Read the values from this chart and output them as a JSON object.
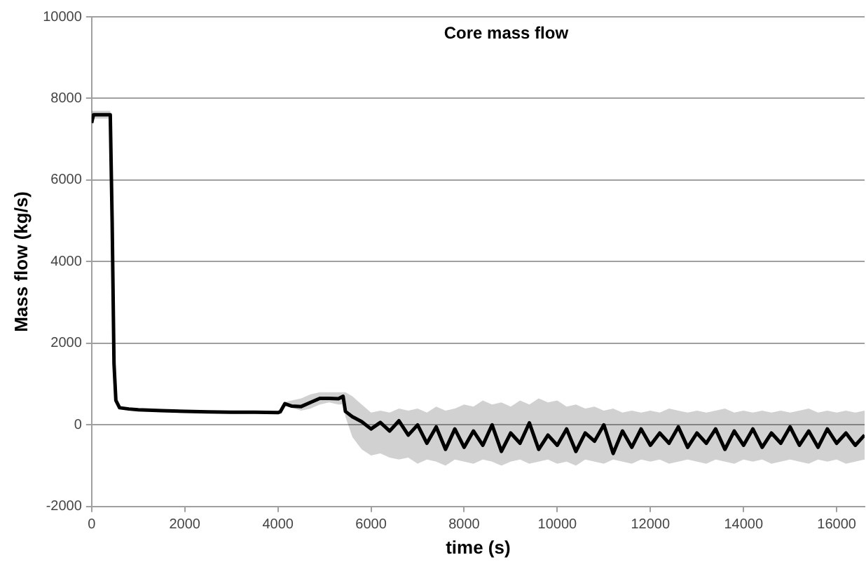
{
  "chart_data": {
    "type": "line",
    "title": "Core mass flow",
    "xlabel": "time (s)",
    "ylabel": "Mass flow (kg/s)",
    "xlim": [
      0,
      16600
    ],
    "xticks": [
      0,
      2000,
      4000,
      6000,
      8000,
      10000,
      12000,
      14000,
      16000
    ],
    "ylim": [
      -2000,
      10000
    ],
    "yticks": [
      -2000,
      0,
      2000,
      4000,
      6000,
      8000,
      10000
    ],
    "grid": "y",
    "marker": "none",
    "x": [
      0,
      40,
      80,
      400,
      440,
      480,
      520,
      600,
      800,
      1000,
      1500,
      2000,
      2500,
      3000,
      3500,
      4000,
      4050,
      4150,
      4300,
      4500,
      4700,
      4900,
      5100,
      5300,
      5400,
      5450,
      5600,
      5800,
      6000,
      6200,
      6400,
      6600,
      6800,
      7000,
      7200,
      7400,
      7600,
      7800,
      8000,
      8200,
      8400,
      8600,
      8800,
      9000,
      9200,
      9400,
      9600,
      9800,
      10000,
      10200,
      10400,
      10600,
      10800,
      11000,
      11200,
      11400,
      11600,
      11800,
      12000,
      12200,
      12400,
      12600,
      12800,
      13000,
      13200,
      13400,
      13600,
      13800,
      14000,
      14200,
      14400,
      14600,
      14800,
      15000,
      15200,
      15400,
      15600,
      15800,
      16000,
      16200,
      16400,
      16600
    ],
    "series": [
      {
        "color": "#000000",
        "values": [
          7400,
          7600,
          7600,
          7600,
          5000,
          1500,
          600,
          420,
          390,
          370,
          350,
          330,
          320,
          310,
          310,
          300,
          320,
          520,
          460,
          450,
          550,
          650,
          650,
          640,
          700,
          330,
          200,
          80,
          -100,
          60,
          -150,
          100,
          -250,
          0,
          -450,
          -50,
          -600,
          -100,
          -550,
          -150,
          -500,
          0,
          -650,
          -200,
          -450,
          50,
          -600,
          -250,
          -500,
          -100,
          -650,
          -200,
          -400,
          0,
          -700,
          -150,
          -550,
          -100,
          -500,
          -200,
          -450,
          -50,
          -550,
          -200,
          -450,
          -100,
          -600,
          -150,
          -500,
          -100,
          -550,
          -200,
          -450,
          -50,
          -500,
          -150,
          -550,
          -100,
          -450,
          -200,
          -500,
          -250
        ],
        "upper": [
          7700,
          7700,
          7700,
          7700,
          5000,
          1500,
          600,
          420,
          390,
          370,
          350,
          330,
          320,
          310,
          310,
          300,
          320,
          560,
          600,
          650,
          750,
          800,
          800,
          800,
          800,
          800,
          700,
          500,
          300,
          350,
          300,
          400,
          350,
          400,
          300,
          450,
          350,
          400,
          500,
          450,
          600,
          500,
          550,
          450,
          600,
          500,
          650,
          550,
          600,
          450,
          500,
          400,
          450,
          350,
          400,
          300,
          350,
          300,
          350,
          300,
          400,
          350,
          300,
          350,
          300,
          350,
          400,
          300,
          350,
          300,
          350,
          300,
          350,
          300,
          350,
          400,
          300,
          350,
          300,
          350,
          300,
          350
        ],
        "lower": [
          7400,
          7500,
          7500,
          7500,
          5000,
          1500,
          600,
          420,
          390,
          370,
          350,
          330,
          320,
          310,
          310,
          300,
          320,
          480,
          420,
          350,
          400,
          500,
          550,
          500,
          500,
          200,
          -300,
          -600,
          -750,
          -700,
          -800,
          -850,
          -800,
          -950,
          -850,
          -900,
          -1000,
          -850,
          -900,
          -950,
          -850,
          -900,
          -1000,
          -900,
          -850,
          -950,
          -900,
          -850,
          -950,
          -900,
          -1000,
          -850,
          -900,
          -950,
          -850,
          -900,
          -950,
          -850,
          -900,
          -850,
          -950,
          -900,
          -850,
          -900,
          -950,
          -850,
          -900,
          -950,
          -850,
          -900,
          -850,
          -950,
          -900,
          -850,
          -900,
          -950,
          -850,
          -900,
          -850,
          -950,
          -900,
          -850
        ]
      }
    ]
  }
}
